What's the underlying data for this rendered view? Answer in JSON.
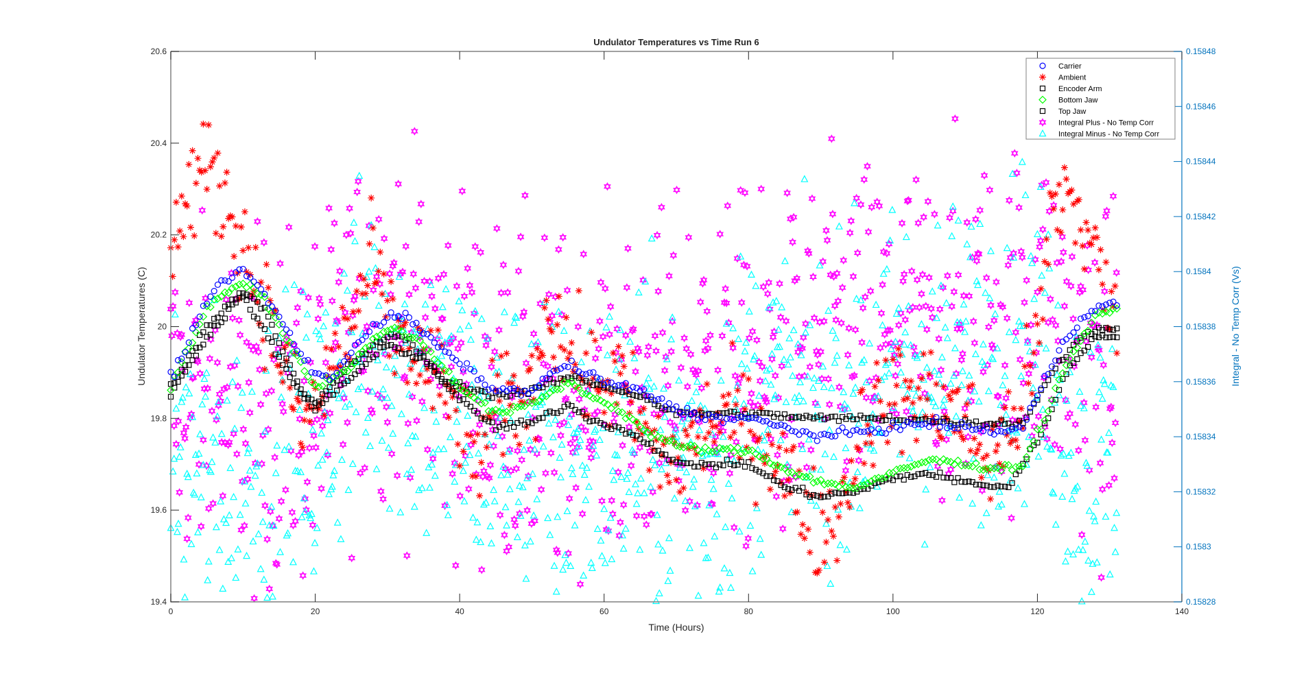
{
  "chart_data": {
    "type": "scatter",
    "title": "Undulator Temperatures vs Time Run 6",
    "xlabel": "Time (Hours)",
    "ylabel": "Undulator Temperatures (C)",
    "ylabel_right": "Integral -  No Temp Corr (Vs)",
    "xlim": [
      0,
      140
    ],
    "ylim": [
      19.4,
      20.6
    ],
    "ylim_right": [
      0.15828,
      0.15848
    ],
    "xticks": [
      "0",
      "20",
      "40",
      "60",
      "80",
      "100",
      "120",
      "140"
    ],
    "yticks": [
      "19.4",
      "19.6",
      "19.8",
      "20",
      "20.2",
      "20.4",
      "20.6"
    ],
    "yticks_right": [
      "0.15828",
      "0.1583",
      "0.15832",
      "0.15834",
      "0.15836",
      "0.15838",
      "0.1584",
      "0.15842",
      "0.15844",
      "0.15846",
      "0.15848"
    ],
    "grid": false,
    "legend_position": "top-right",
    "colors": {
      "axis": "#808080",
      "right_axis": "#0072bd"
    },
    "series": [
      {
        "name": "Carrier",
        "marker": "circle",
        "color": "#0000ff",
        "axis": "left",
        "step": 0.5,
        "spread": 0.005,
        "x": [
          0,
          2,
          5,
          8,
          10,
          12,
          15,
          18,
          20,
          22,
          25,
          28,
          30,
          33,
          36,
          40,
          45,
          50,
          53,
          55,
          57,
          60,
          65,
          70,
          75,
          80,
          85,
          90,
          95,
          100,
          105,
          110,
          115,
          118,
          120,
          123,
          126,
          130,
          131
        ],
        "y": [
          19.89,
          19.95,
          20.06,
          20.11,
          20.12,
          20.09,
          20.02,
          19.94,
          19.9,
          19.88,
          19.95,
          20.0,
          20.02,
          20.02,
          19.97,
          19.92,
          19.86,
          19.86,
          19.9,
          19.92,
          19.9,
          19.88,
          19.86,
          19.82,
          19.8,
          19.8,
          19.78,
          19.76,
          19.77,
          19.78,
          19.79,
          19.78,
          19.77,
          19.78,
          19.85,
          19.95,
          20.02,
          20.05,
          20.05
        ]
      },
      {
        "name": "Ambient",
        "marker": "asterisk",
        "color": "#ff0000",
        "axis": "left",
        "step": 0.25,
        "spread": 0.06,
        "x": [
          0,
          2,
          4,
          7,
          10,
          13,
          16,
          18,
          21,
          23,
          25,
          28,
          30,
          33,
          37,
          40,
          42,
          45,
          50,
          52,
          55,
          58,
          62,
          66,
          70,
          75,
          78,
          83,
          86,
          90,
          93,
          96,
          100,
          105,
          110,
          113,
          117,
          120,
          122,
          124,
          127,
          130,
          131
        ],
        "y": [
          20.2,
          20.25,
          20.35,
          20.3,
          20.18,
          20.05,
          19.9,
          19.78,
          19.85,
          19.95,
          20.0,
          20.15,
          20.0,
          19.95,
          19.88,
          19.8,
          19.7,
          19.82,
          19.85,
          20.05,
          19.95,
          19.88,
          19.88,
          19.75,
          19.7,
          19.8,
          19.8,
          19.75,
          19.65,
          19.55,
          19.62,
          19.8,
          19.85,
          19.85,
          19.8,
          19.7,
          19.8,
          19.95,
          20.25,
          20.3,
          20.2,
          20.05,
          19.98
        ]
      },
      {
        "name": "Encoder Arm",
        "marker": "square",
        "color": "#000000",
        "axis": "left",
        "step": 0.5,
        "spread": 0.004,
        "x": [
          0,
          5,
          10,
          13,
          18,
          20,
          25,
          30,
          33,
          38,
          45,
          50,
          55,
          60,
          65,
          70,
          80,
          90,
          100,
          110,
          118,
          122,
          126,
          131
        ],
        "y": [
          19.87,
          20.0,
          20.08,
          20.04,
          19.86,
          19.83,
          19.92,
          19.98,
          19.97,
          19.88,
          19.85,
          19.86,
          19.89,
          19.87,
          19.85,
          19.81,
          19.81,
          19.8,
          19.8,
          19.79,
          19.79,
          19.9,
          19.98,
          20.0
        ]
      },
      {
        "name": "Bottom Jaw",
        "marker": "diamond",
        "color": "#00ff00",
        "axis": "left",
        "step": 0.5,
        "spread": 0.004,
        "x": [
          0,
          5,
          10,
          13,
          18,
          20,
          24,
          28,
          31,
          35,
          40,
          45,
          50,
          55,
          58,
          62,
          66,
          70,
          75,
          80,
          85,
          90,
          95,
          100,
          105,
          110,
          115,
          118,
          121,
          124,
          128,
          131
        ],
        "y": [
          19.87,
          20.04,
          20.1,
          20.06,
          19.92,
          19.87,
          19.9,
          19.97,
          20.0,
          19.96,
          19.87,
          19.81,
          19.83,
          19.88,
          19.85,
          19.82,
          19.77,
          19.74,
          19.73,
          19.73,
          19.69,
          19.66,
          19.65,
          19.68,
          19.71,
          19.7,
          19.69,
          19.7,
          19.8,
          19.92,
          20.02,
          20.04
        ]
      },
      {
        "name": "Top Jaw",
        "marker": "square",
        "color": "#000000",
        "axis": "left",
        "step": 0.5,
        "spread": 0.004,
        "x": [
          0,
          5,
          10,
          18,
          20,
          30,
          35,
          40,
          45,
          50,
          55,
          58,
          65,
          70,
          80,
          85,
          90,
          95,
          100,
          105,
          110,
          116,
          120,
          124,
          128,
          131
        ],
        "y": [
          19.85,
          19.98,
          20.07,
          19.85,
          19.82,
          19.96,
          19.93,
          19.84,
          19.78,
          19.79,
          19.83,
          19.8,
          19.76,
          19.7,
          19.7,
          19.65,
          19.63,
          19.64,
          19.67,
          19.68,
          19.66,
          19.65,
          19.75,
          19.9,
          19.98,
          19.98
        ]
      },
      {
        "name": "Integral Plus -  No Temp Corr",
        "marker": "hexagram",
        "color": "#ff00ff",
        "axis": "right",
        "step": 0.15,
        "spread": 3.2e-05,
        "x": [
          0,
          10,
          20,
          28,
          35,
          45,
          55,
          65,
          75,
          85,
          95,
          105,
          115,
          120,
          125,
          131
        ],
        "y": [
          0.158355,
          0.158347,
          0.15835,
          0.158388,
          0.158372,
          0.158355,
          0.158347,
          0.158355,
          0.158363,
          0.158363,
          0.158377,
          0.158377,
          0.15838,
          0.158388,
          0.158372,
          0.158355
        ]
      },
      {
        "name": "Integral Minus -  No Temp Corr",
        "marker": "triangle",
        "color": "#00ffff",
        "axis": "right",
        "step": 0.15,
        "spread": 3e-05,
        "x": [
          0,
          10,
          20,
          28,
          35,
          45,
          55,
          65,
          75,
          80,
          90,
          100,
          110,
          118,
          122,
          126,
          131
        ],
        "y": [
          0.15833,
          0.158322,
          0.158338,
          0.15838,
          0.158355,
          0.158338,
          0.15833,
          0.158338,
          0.15833,
          0.158355,
          0.158347,
          0.158363,
          0.158367,
          0.15838,
          0.158363,
          0.15833,
          0.15833
        ]
      }
    ]
  }
}
